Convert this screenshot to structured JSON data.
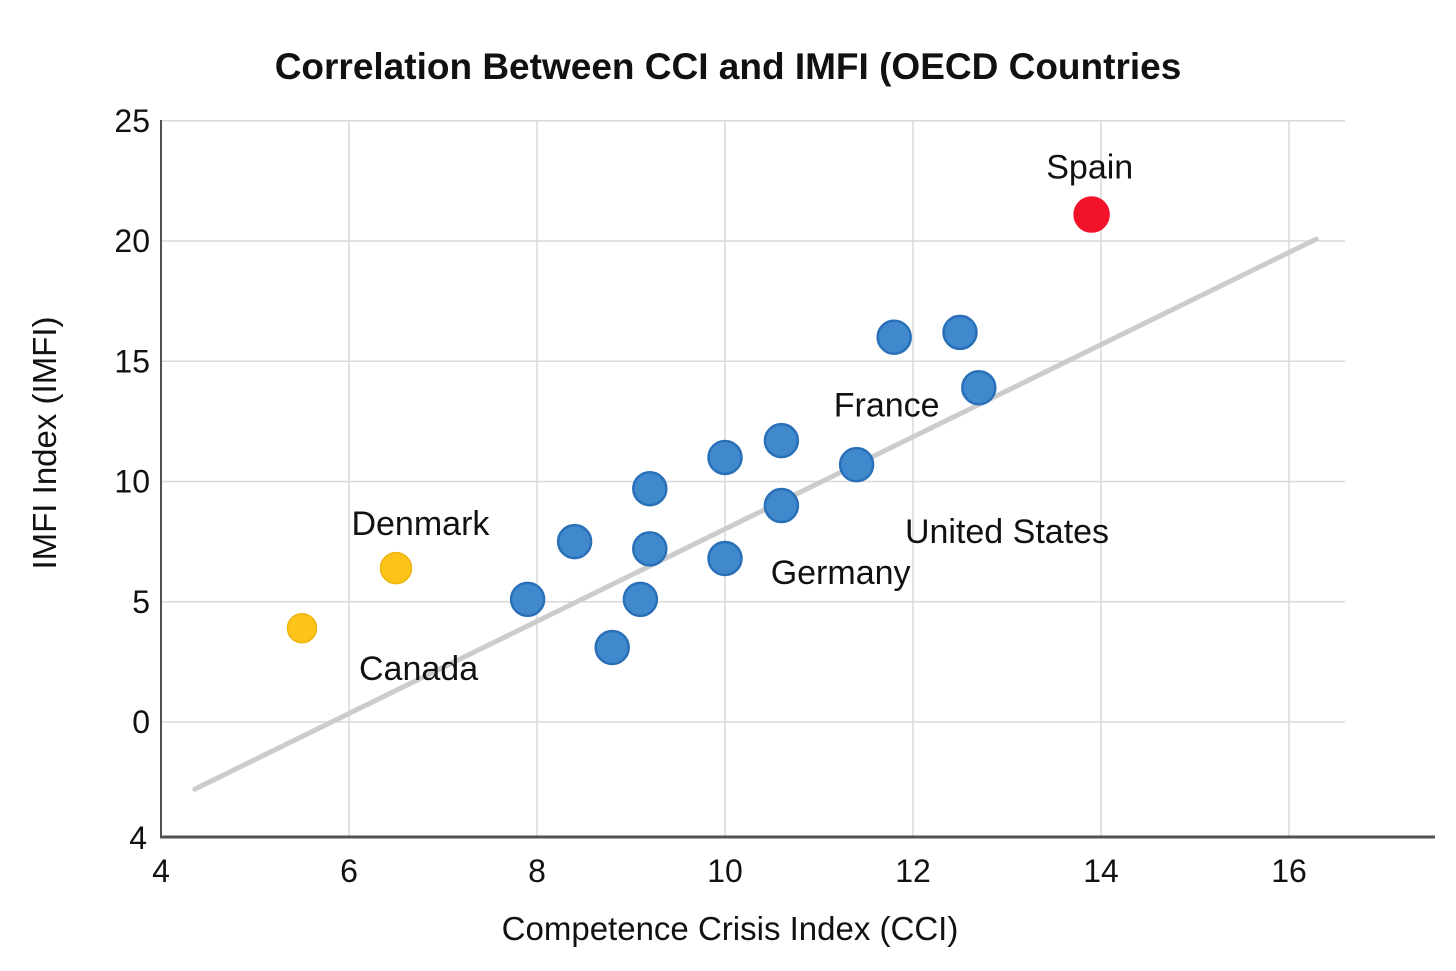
{
  "title": "Correlation Between CCI and IMFI (OECD Countries",
  "chart_data": {
    "type": "scatter",
    "title": "Correlation Between CCI and IMFI (OECD Countries",
    "xlabel": "Competence Crisis Index (CCI)",
    "ylabel": "IMFI Index (IMFI)",
    "xlim": [
      4,
      16.6
    ],
    "ylim": [
      -4.8,
      25
    ],
    "x_ticks": [
      "4",
      "6",
      "8",
      "10",
      "12",
      "14",
      "16"
    ],
    "y_ticks": [
      "25",
      "20",
      "15",
      "10",
      "5",
      "0"
    ],
    "y_tick_values": [
      25,
      20,
      15,
      10,
      5,
      0
    ],
    "x_tick_values": [
      4,
      6,
      8,
      10,
      12,
      14,
      16
    ],
    "extra_y_bottom_label": "4",
    "grid": true,
    "legend": "none",
    "series": [
      {
        "name": "oecd_default",
        "color": "#4189cd",
        "stroke": "#2a70b8",
        "points": [
          {
            "x": 11.8,
            "y": 16.0,
            "r": 16.5
          },
          {
            "x": 12.5,
            "y": 16.2,
            "r": 16.5
          },
          {
            "x": 12.7,
            "y": 13.9,
            "r": 16.5
          },
          {
            "x": 10.6,
            "y": 11.7,
            "r": 16.5
          },
          {
            "x": 10.0,
            "y": 11.0,
            "r": 16.5
          },
          {
            "x": 11.4,
            "y": 10.7,
            "r": 16.5
          },
          {
            "x": 9.2,
            "y": 9.7,
            "r": 16.5
          },
          {
            "x": 10.6,
            "y": 9.0,
            "r": 16.5
          },
          {
            "x": 8.4,
            "y": 7.5,
            "r": 16.5
          },
          {
            "x": 9.2,
            "y": 7.2,
            "r": 16.5
          },
          {
            "x": 10.0,
            "y": 6.8,
            "r": 16.5
          },
          {
            "x": 7.9,
            "y": 5.1,
            "r": 16.5
          },
          {
            "x": 9.1,
            "y": 5.1,
            "r": 16.5
          },
          {
            "x": 8.8,
            "y": 3.1,
            "r": 16.5
          }
        ]
      },
      {
        "name": "highlight_yellow",
        "color": "#fcc419",
        "stroke": "#f0b30e",
        "points": [
          {
            "x": 6.5,
            "y": 6.4,
            "r": 15.5,
            "country": "Denmark"
          },
          {
            "x": 5.5,
            "y": 3.9,
            "r": 14.5,
            "country": "Canada"
          }
        ]
      },
      {
        "name": "highlight_red",
        "color": "#f2132b",
        "stroke": "#f2132b",
        "points": [
          {
            "x": 13.9,
            "y": 21.1,
            "r": 17.5,
            "country": "Spain"
          }
        ]
      }
    ],
    "annotations": [
      {
        "text": "Spain",
        "x": 13.88,
        "y": 23.1
      },
      {
        "text": "France",
        "x": 11.72,
        "y": 13.2
      },
      {
        "text": "United States",
        "x": 13.0,
        "y": 7.94
      },
      {
        "text": "Germany",
        "x": 11.23,
        "y": 6.24
      },
      {
        "text": "Denmark",
        "x": 6.76,
        "y": 8.27
      },
      {
        "text": "Canada",
        "x": 6.74,
        "y": 2.25
      }
    ],
    "trendline": {
      "x1": 4.36,
      "y1": -2.79,
      "x2": 16.29,
      "y2": 20.08
    }
  },
  "colors": {
    "background": "#ffffff",
    "gridline": "#d9d9d9",
    "spine": "#515151",
    "trendline": "#cccccc",
    "point_blue_fill": "#4189cd",
    "point_blue_stroke": "#2a70b8",
    "point_yellow_fill": "#fcc419",
    "point_red_fill": "#f2132b",
    "text": "#111111"
  }
}
